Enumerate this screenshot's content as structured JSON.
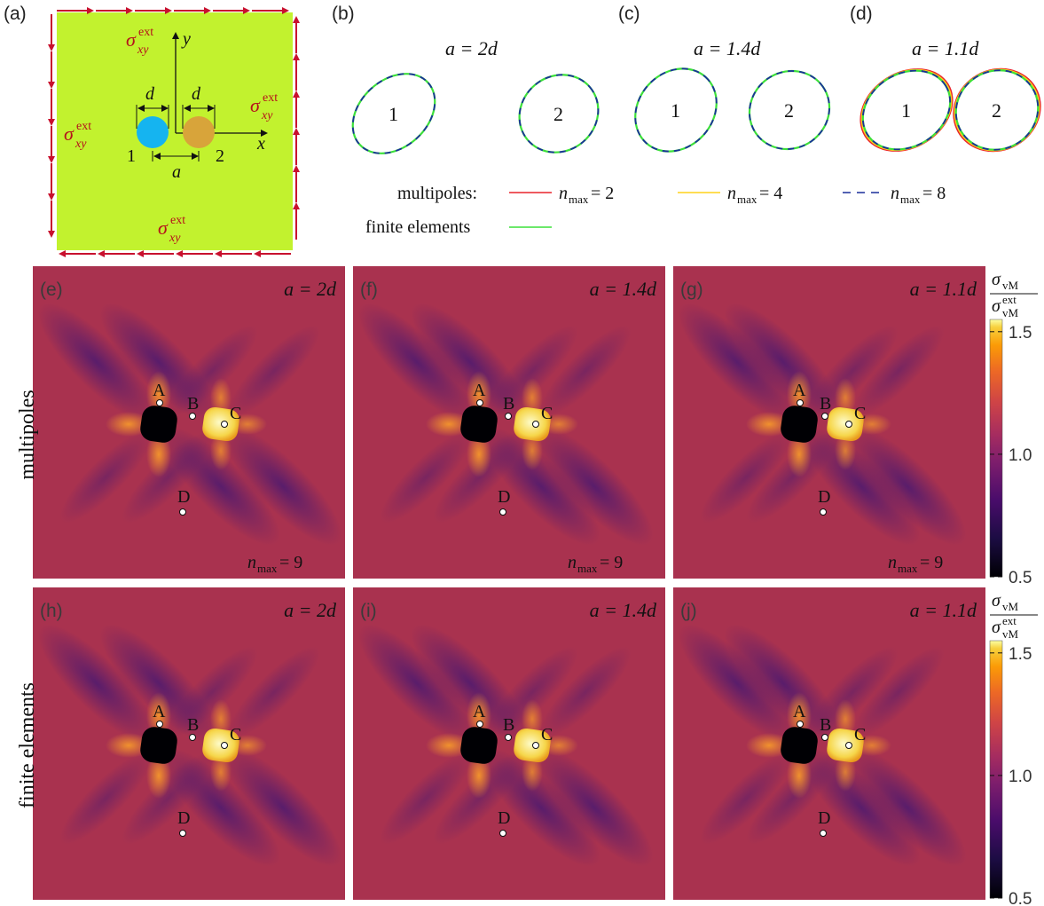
{
  "panel_letters": [
    "(a)",
    "(b)",
    "(c)",
    "(d)",
    "(e)",
    "(f)",
    "(g)",
    "(h)",
    "(i)",
    "(j)"
  ],
  "schematic": {
    "sigma": "σ",
    "sup": "ext",
    "sub": "xy",
    "axis_x": "x",
    "axis_y": "y",
    "d": "d",
    "a": "a",
    "inc1": "1",
    "inc2": "2",
    "colors": {
      "matrix": "#c2f22e",
      "inc1": "#15b4f0",
      "inc2": "#d8a43a",
      "arrow": "#c8102e",
      "text": "#b5121b"
    }
  },
  "shape_titles": [
    "a = 2d",
    "a = 1.4d",
    "a = 1.1d"
  ],
  "inclusion_labels": [
    "1",
    "2"
  ],
  "legend": {
    "multipoles_label": "multipoles:",
    "n2": "n",
    "n2_sub": "max",
    "n2_val": " = 2",
    "n4_val": " = 4",
    "n8_val": " = 8",
    "fe_label": "finite elements",
    "colors": {
      "n2": "#e8242b",
      "n4": "#ffd21a",
      "n8": "#1a2f9a",
      "fe": "#3ce03a"
    }
  },
  "maps": {
    "titles": [
      "a = 2d",
      "a = 1.4d",
      "a = 1.1d",
      "a = 2d",
      "a = 1.4d",
      "a = 1.1d"
    ],
    "nmax_label": "n",
    "nmax_sub": "max",
    "nmax_val": " = 9",
    "points": [
      "A",
      "B",
      "C",
      "D"
    ],
    "row_labels": [
      "multipoles",
      "finite elements"
    ],
    "colors": {
      "background": "#a9324f"
    }
  },
  "colorbar": {
    "label_num": "σ",
    "label_num_sub": "vM",
    "label_den": "σ",
    "label_den_sub": "vM",
    "label_den_sup": "ext",
    "ticks": [
      "1.5",
      "1.0",
      "0.5"
    ],
    "tick_values": [
      1.5,
      1.0,
      0.5
    ],
    "range": [
      0.5,
      1.55
    ]
  }
}
